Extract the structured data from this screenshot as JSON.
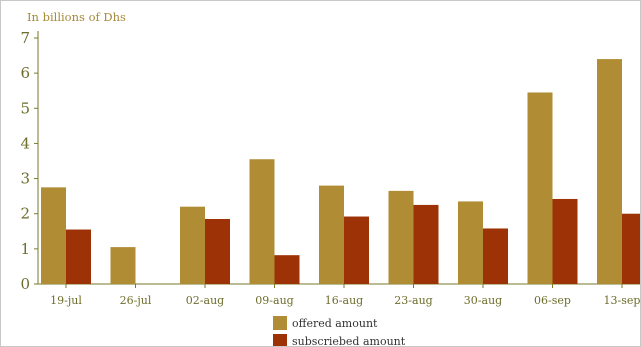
{
  "chart_data": {
    "type": "bar",
    "ylabel": "In billions of Dhs",
    "categories": [
      "19-jul",
      "26-jul",
      "02-aug",
      "09-aug",
      "16-aug",
      "23-aug",
      "30-aug",
      "06-sep",
      "13-sep"
    ],
    "series": [
      {
        "name": "offered amount",
        "color": "#b08d34",
        "values": [
          2.75,
          1.05,
          2.2,
          3.55,
          2.8,
          2.65,
          2.35,
          5.45,
          6.4
        ]
      },
      {
        "name": "subscriebed amount",
        "color": "#9c3206",
        "values": [
          1.55,
          0,
          1.85,
          0.82,
          1.92,
          2.25,
          1.58,
          2.42,
          2.0
        ]
      }
    ],
    "yticks": [
      0,
      1,
      2,
      3,
      4,
      5,
      6,
      7
    ],
    "ylim": [
      0,
      7
    ],
    "grid": false,
    "legend": "bottom-center"
  }
}
